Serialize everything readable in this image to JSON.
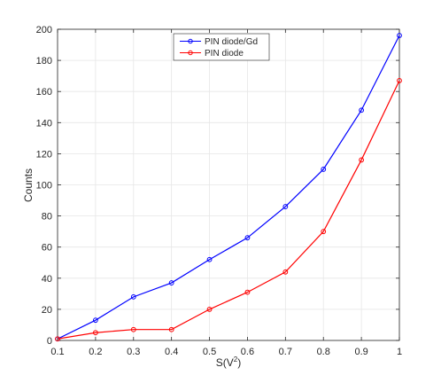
{
  "chart_data": {
    "type": "line",
    "xlabel": "S(V",
    "xlabel_superscript": "2",
    "xlabel_suffix": ")",
    "ylabel": "Counts",
    "xlim": [
      0.1,
      1
    ],
    "ylim": [
      0,
      200
    ],
    "xticks": [
      0.1,
      0.2,
      0.3,
      0.4,
      0.5,
      0.6,
      0.7,
      0.8,
      0.9,
      1
    ],
    "xtick_labels": [
      "0.1",
      "0.2",
      "0.3",
      "0.4",
      "0.5",
      "0.6",
      "0.7",
      "0.8",
      "0.9",
      "1"
    ],
    "yticks": [
      0,
      20,
      40,
      60,
      80,
      100,
      120,
      140,
      160,
      180,
      200
    ],
    "ytick_labels": [
      "0",
      "20",
      "40",
      "60",
      "80",
      "100",
      "120",
      "140",
      "160",
      "180",
      "200"
    ],
    "grid": true,
    "legend_position": "top-center",
    "x": [
      0.1,
      0.2,
      0.3,
      0.4,
      0.5,
      0.6,
      0.7,
      0.8,
      0.9,
      1.0
    ],
    "series": [
      {
        "name": "PIN diode/Gd",
        "color": "#0000ff",
        "values": [
          1,
          13,
          28,
          37,
          52,
          66,
          86,
          110,
          148,
          196
        ]
      },
      {
        "name": "PIN diode",
        "color": "#ff0000",
        "values": [
          1,
          5,
          7,
          7,
          20,
          31,
          44,
          70,
          116,
          167
        ]
      }
    ]
  }
}
